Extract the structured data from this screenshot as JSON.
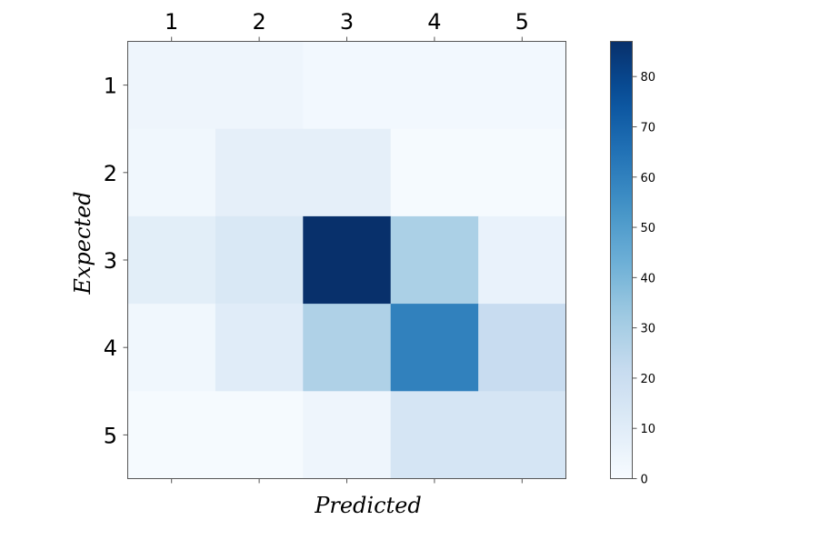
{
  "chart_data": {
    "type": "heatmap",
    "title": "",
    "xlabel": "Predicted",
    "ylabel": "Expected",
    "x_categories": [
      "1",
      "2",
      "3",
      "4",
      "5"
    ],
    "y_categories": [
      "1",
      "2",
      "3",
      "4",
      "5"
    ],
    "values": [
      [
        4,
        4,
        2,
        2,
        2
      ],
      [
        3,
        8,
        8,
        1,
        1
      ],
      [
        9,
        13,
        87,
        29,
        6
      ],
      [
        3,
        10,
        28,
        60,
        21
      ],
      [
        1,
        1,
        4,
        15,
        15
      ]
    ],
    "colormap": "Blues",
    "color_range": [
      0,
      87
    ],
    "colorbar_ticks": [
      0,
      10,
      20,
      30,
      40,
      50,
      60,
      70,
      80
    ],
    "colorbar_tick_labels": [
      "0",
      "10",
      "20",
      "30",
      "40",
      "50",
      "60",
      "70",
      "80"
    ],
    "x_ticks_position": "top",
    "grid": false
  }
}
